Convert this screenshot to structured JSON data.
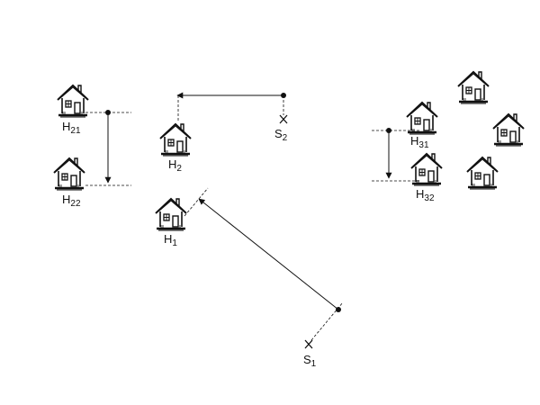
{
  "labels": {
    "H21": {
      "base": "H",
      "sub": "21"
    },
    "H22": {
      "base": "H",
      "sub": "22"
    },
    "H2": {
      "base": "H",
      "sub": "2"
    },
    "H1": {
      "base": "H",
      "sub": "1"
    },
    "H31": {
      "base": "H",
      "sub": "31"
    },
    "H32": {
      "base": "H",
      "sub": "32"
    },
    "S1": {
      "base": "S",
      "sub": "1"
    },
    "S2": {
      "base": "S",
      "sub": "2"
    }
  },
  "icons": {
    "house": "house-icon",
    "source": "x-mark-icon",
    "point": "dot-icon"
  },
  "colors": {
    "ink": "#111111",
    "background": "#ffffff"
  }
}
